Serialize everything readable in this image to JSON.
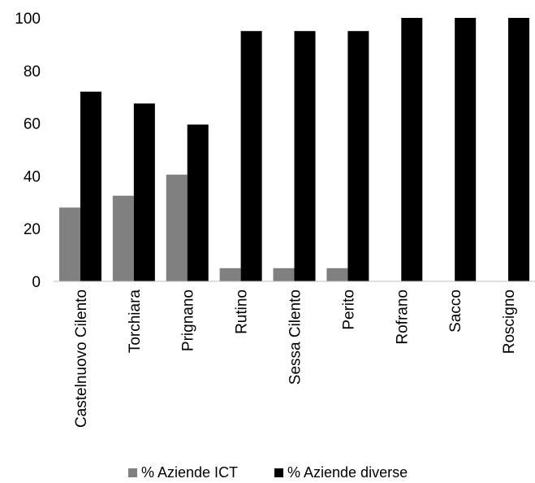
{
  "chart_data": {
    "type": "bar",
    "categories": [
      "Castelnuovo Cilento",
      "Torchiara",
      "Prignano",
      "Rutino",
      "Sessa Cilento",
      "Perito",
      "Rofrano",
      "Sacco",
      "Roscigno"
    ],
    "series": [
      {
        "name": "% Aziende ICT",
        "color": "#808080",
        "values": [
          28,
          32.5,
          40.5,
          5,
          5,
          5,
          0,
          0,
          0
        ]
      },
      {
        "name": "% Aziende diverse",
        "color": "#000000",
        "values": [
          72,
          67.5,
          59.5,
          95,
          95,
          95,
          100,
          100,
          100
        ]
      }
    ],
    "ylim": [
      0,
      100
    ],
    "yticks": [
      "0",
      "20",
      "40",
      "60",
      "80",
      "100"
    ],
    "grid": false,
    "legend_position": "bottom"
  }
}
